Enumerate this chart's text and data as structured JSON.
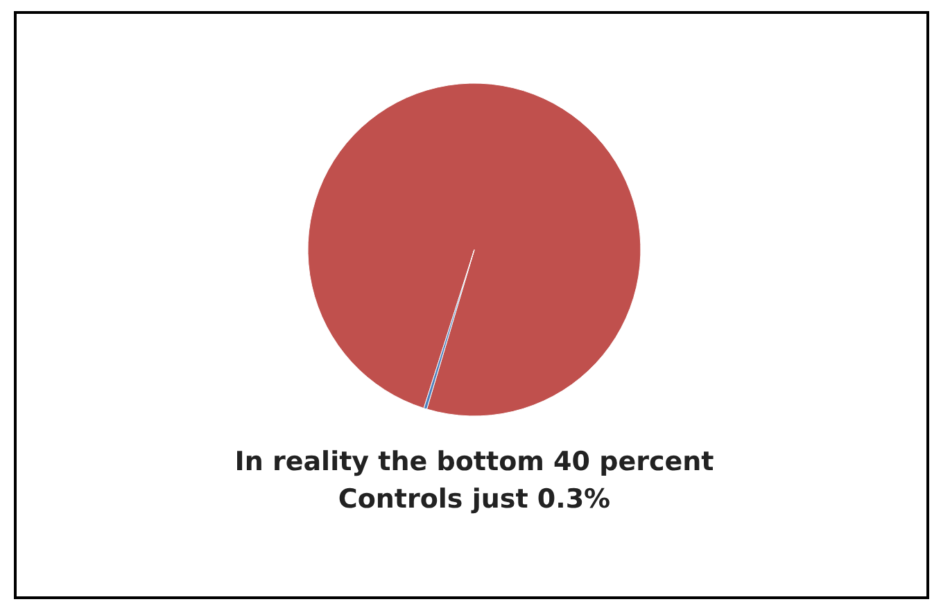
{
  "chart_data": {
    "type": "pie",
    "categories": [
      null,
      null
    ],
    "values": [
      99.7,
      0.3
    ],
    "colors": [
      "#c0504d",
      "#4f81bd"
    ],
    "annotations": [
      "In reality the bottom 40 percent",
      "Controls just 0.3%"
    ]
  }
}
